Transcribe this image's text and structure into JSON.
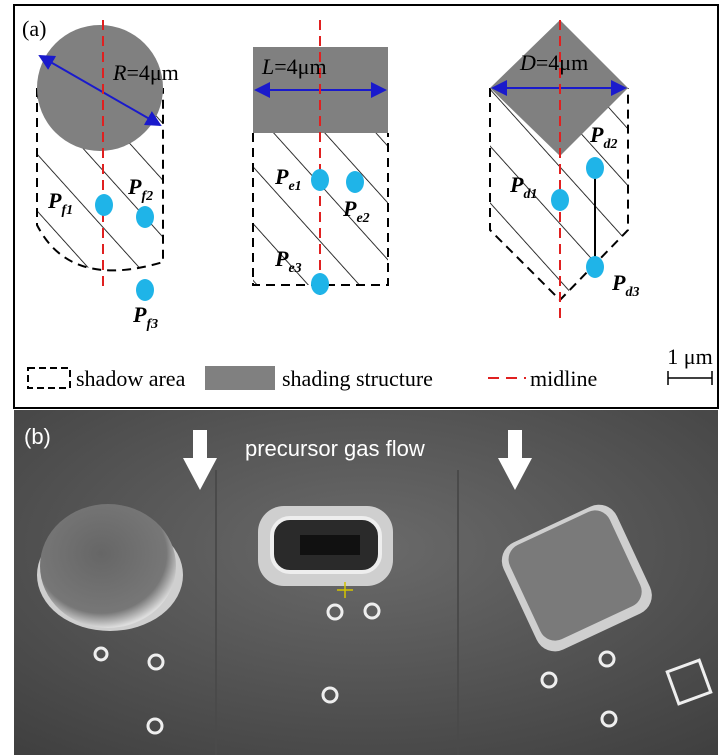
{
  "panel_a": {
    "label": "(a)",
    "structures": [
      {
        "dimension": {
          "symbol": "R",
          "value": "=4μm"
        },
        "points": [
          {
            "base": "P",
            "sub": "f1"
          },
          {
            "base": "P",
            "sub": "f2"
          },
          {
            "base": "P",
            "sub": "f3"
          }
        ]
      },
      {
        "dimension": {
          "symbol": "L",
          "value": "=4μm"
        },
        "points": [
          {
            "base": "P",
            "sub": "e1"
          },
          {
            "base": "P",
            "sub": "e2"
          },
          {
            "base": "P",
            "sub": "e3"
          }
        ]
      },
      {
        "dimension": {
          "symbol": "D",
          "value": "=4μm"
        },
        "points": [
          {
            "base": "P",
            "sub": "d1"
          },
          {
            "base": "P",
            "sub": "d2"
          },
          {
            "base": "P",
            "sub": "d3"
          }
        ]
      }
    ],
    "legend": [
      "shadow area",
      "shading structure",
      "midline"
    ],
    "scale_bar": "1 μm"
  },
  "panel_b": {
    "label": "(b)",
    "caption": "precursor gas flow"
  }
}
